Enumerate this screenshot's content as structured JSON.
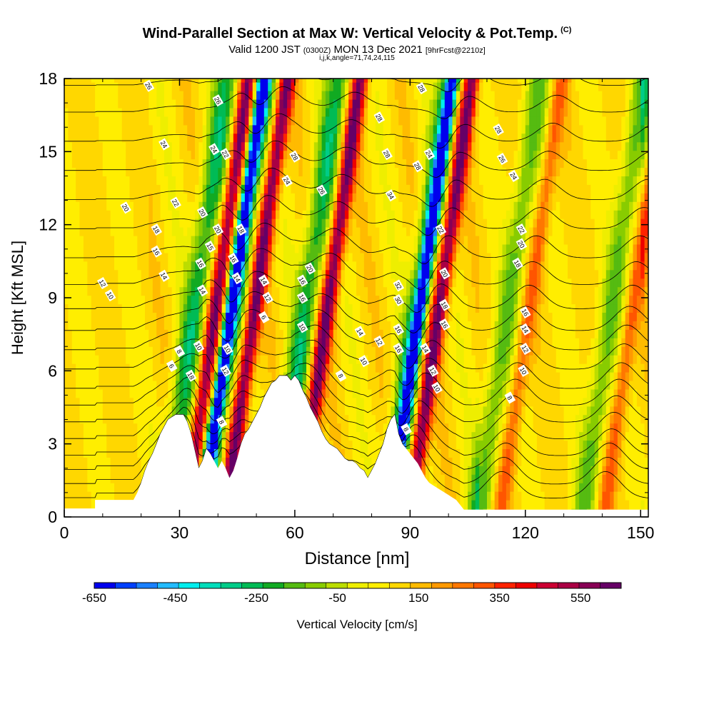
{
  "header": {
    "title": "Wind-Parallel Section at Max W: Vertical Velocity & Pot.Temp.",
    "copyright": "(C)",
    "valid_prefix": "Valid 1200 JST",
    "valid_zulu": "(0300Z)",
    "valid_date": "MON 13 Dec 2021",
    "forecast": "[9hrFcst@2210z]",
    "indices": "i,j,k,angle=71,74,24,115"
  },
  "chart_data": {
    "type": "heatmap",
    "xlabel": "Distance [nm]",
    "ylabel": "Height [Kft MSL]",
    "xlim": [
      0,
      152
    ],
    "ylim": [
      0,
      18
    ],
    "xticks": [
      0,
      30,
      60,
      90,
      120,
      150
    ],
    "xtick_labels": [
      "0",
      "30",
      "60",
      "90",
      "120",
      "150"
    ],
    "yticks": [
      0,
      3,
      6,
      9,
      12,
      15,
      18
    ],
    "ytick_labels": [
      "0",
      "3",
      "6",
      "9",
      "12",
      "15",
      "18"
    ],
    "grid": false,
    "colorbar": {
      "label": "Vertical Velocity [cm/s]",
      "placement": "bottom",
      "min": -650,
      "max": 650,
      "tick_values": [
        -650,
        -450,
        -250,
        -50,
        150,
        350,
        550
      ],
      "tick_labels": [
        "-650",
        "-450",
        "-250",
        "-50",
        "150",
        "350",
        "550"
      ],
      "colors": [
        "#0000ee",
        "#0040ff",
        "#1a80ff",
        "#22bbff",
        "#00eeee",
        "#00ddbb",
        "#00cc88",
        "#00bb55",
        "#11aa22",
        "#55bb11",
        "#88cc00",
        "#bbdd00",
        "#eeee00",
        "#ffee00",
        "#ffd700",
        "#ffbb00",
        "#ff9900",
        "#ff7700",
        "#ff5500",
        "#ff2200",
        "#ee0000",
        "#cc0033",
        "#aa0044",
        "#880055",
        "#660066"
      ]
    },
    "terrain": [
      [
        0,
        0.35
      ],
      [
        8,
        0.35
      ],
      [
        8,
        0.7
      ],
      [
        18,
        0.7
      ],
      [
        19,
        1.0
      ],
      [
        20,
        1.4
      ],
      [
        21,
        1.9
      ],
      [
        22,
        2.3
      ],
      [
        23,
        2.6
      ],
      [
        24,
        3.0
      ],
      [
        25,
        3.4
      ],
      [
        26,
        3.7
      ],
      [
        27,
        4.0
      ],
      [
        28,
        4.1
      ],
      [
        29,
        4.2
      ],
      [
        30,
        4.2
      ],
      [
        31,
        4.2
      ],
      [
        32,
        3.9
      ],
      [
        33,
        3.4
      ],
      [
        34,
        2.7
      ],
      [
        35,
        2.0
      ],
      [
        36,
        2.3
      ],
      [
        37,
        2.8
      ],
      [
        38,
        2.6
      ],
      [
        39,
        2.3
      ],
      [
        40,
        2.0
      ],
      [
        41,
        2.3
      ],
      [
        42,
        2.0
      ],
      [
        43,
        1.6
      ],
      [
        44,
        1.9
      ],
      [
        45,
        2.4
      ],
      [
        46,
        3.0
      ],
      [
        47,
        3.4
      ],
      [
        48,
        3.6
      ],
      [
        49,
        3.9
      ],
      [
        50,
        4.2
      ],
      [
        51,
        4.5
      ],
      [
        52,
        4.9
      ],
      [
        53,
        5.2
      ],
      [
        54,
        5.5
      ],
      [
        55,
        5.6
      ],
      [
        56,
        5.8
      ],
      [
        57,
        5.8
      ],
      [
        58,
        5.8
      ],
      [
        59,
        5.6
      ],
      [
        60,
        5.8
      ],
      [
        61,
        5.6
      ],
      [
        62,
        5.2
      ],
      [
        63,
        4.9
      ],
      [
        64,
        4.5
      ],
      [
        65,
        4.2
      ],
      [
        66,
        3.9
      ],
      [
        67,
        3.5
      ],
      [
        68,
        3.2
      ],
      [
        69,
        3.0
      ],
      [
        70,
        2.9
      ],
      [
        71,
        2.8
      ],
      [
        72,
        2.6
      ],
      [
        73,
        2.4
      ],
      [
        74,
        2.3
      ],
      [
        75,
        2.3
      ],
      [
        76,
        2.2
      ],
      [
        77,
        2.0
      ],
      [
        78,
        1.9
      ],
      [
        79,
        1.6
      ],
      [
        80,
        1.9
      ],
      [
        81,
        2.2
      ],
      [
        82,
        2.6
      ],
      [
        83,
        3.0
      ],
      [
        84,
        3.6
      ],
      [
        85,
        4.0
      ],
      [
        86,
        4.2
      ],
      [
        87,
        3.4
      ],
      [
        88,
        3.0
      ],
      [
        89,
        2.8
      ],
      [
        90,
        2.6
      ],
      [
        91,
        2.4
      ],
      [
        92,
        2.2
      ],
      [
        93,
        1.9
      ],
      [
        94,
        1.6
      ],
      [
        95,
        1.4
      ],
      [
        96,
        1.3
      ],
      [
        97,
        1.2
      ],
      [
        98,
        1.1
      ],
      [
        99,
        1.0
      ],
      [
        100,
        0.9
      ],
      [
        101,
        0.8
      ],
      [
        102,
        0.7
      ],
      [
        103,
        0.5
      ],
      [
        104,
        0.3
      ],
      [
        105,
        0.3
      ],
      [
        106,
        0.3
      ],
      [
        150,
        0.3
      ],
      [
        152,
        0.3
      ]
    ],
    "updraft_x_at_3kft": [
      34.5,
      44.5,
      63.5,
      92.5,
      116,
      143
    ],
    "downdraft_x_at_3kft": [
      38.5,
      87.5
    ],
    "band_tilt_nm_per_kft": 0.9,
    "updraft_peak_cm_s": 550,
    "downdraft_peak_cm_s": -600,
    "theta_levels": [
      {
        "base_kft": 0.6,
        "label": ""
      },
      {
        "base_kft": 1.2,
        "label": ""
      },
      {
        "base_kft": 1.8,
        "label": ""
      },
      {
        "base_kft": 2.4,
        "label": ""
      },
      {
        "base_kft": 3.1,
        "label": ""
      },
      {
        "base_kft": 3.8,
        "label": "8"
      },
      {
        "base_kft": 4.5,
        "label": "10"
      },
      {
        "base_kft": 5.2,
        "label": "12"
      },
      {
        "base_kft": 6.0,
        "label": "14"
      },
      {
        "base_kft": 6.8,
        "label": "16"
      },
      {
        "base_kft": 7.6,
        "label": "18"
      },
      {
        "base_kft": 8.5,
        "label": "20"
      },
      {
        "base_kft": 9.5,
        "label": "22"
      },
      {
        "base_kft": 10.6,
        "label": "24"
      },
      {
        "base_kft": 11.8,
        "label": "26"
      },
      {
        "base_kft": 13.0,
        "label": "28"
      },
      {
        "base_kft": 14.2,
        "label": ""
      },
      {
        "base_kft": 15.4,
        "label": ""
      },
      {
        "base_kft": 16.6,
        "label": ""
      },
      {
        "base_kft": 17.7,
        "label": ""
      }
    ],
    "contour_labels": [
      {
        "x": 10,
        "y": 9.6,
        "text": "12"
      },
      {
        "x": 12,
        "y": 9.1,
        "text": "10"
      },
      {
        "x": 16,
        "y": 12.7,
        "text": "20"
      },
      {
        "x": 22,
        "y": 17.7,
        "text": "26"
      },
      {
        "x": 24,
        "y": 10.9,
        "text": "16"
      },
      {
        "x": 26,
        "y": 9.9,
        "text": "14"
      },
      {
        "x": 24,
        "y": 11.8,
        "text": "18"
      },
      {
        "x": 26,
        "y": 15.3,
        "text": "24"
      },
      {
        "x": 29,
        "y": 12.9,
        "text": "22"
      },
      {
        "x": 28,
        "y": 6.2,
        "text": "6"
      },
      {
        "x": 30,
        "y": 6.8,
        "text": "8"
      },
      {
        "x": 33,
        "y": 5.8,
        "text": "18"
      },
      {
        "x": 35,
        "y": 7.0,
        "text": "10"
      },
      {
        "x": 36,
        "y": 9.3,
        "text": "14"
      },
      {
        "x": 35.5,
        "y": 10.4,
        "text": "16"
      },
      {
        "x": 38,
        "y": 11.1,
        "text": "15"
      },
      {
        "x": 36,
        "y": 12.5,
        "text": "20"
      },
      {
        "x": 40,
        "y": 11.8,
        "text": "20"
      },
      {
        "x": 39,
        "y": 15.1,
        "text": "24"
      },
      {
        "x": 40,
        "y": 17.1,
        "text": "26"
      },
      {
        "x": 42,
        "y": 14.9,
        "text": "22"
      },
      {
        "x": 42,
        "y": 6.0,
        "text": "12"
      },
      {
        "x": 42.5,
        "y": 6.9,
        "text": "10"
      },
      {
        "x": 41,
        "y": 3.9,
        "text": "8"
      },
      {
        "x": 44,
        "y": 10.6,
        "text": "16"
      },
      {
        "x": 45,
        "y": 9.8,
        "text": "14"
      },
      {
        "x": 46,
        "y": 11.8,
        "text": "18"
      },
      {
        "x": 52,
        "y": 9.7,
        "text": "14"
      },
      {
        "x": 53,
        "y": 9.0,
        "text": "12"
      },
      {
        "x": 52,
        "y": 8.2,
        "text": "6"
      },
      {
        "x": 58,
        "y": 13.8,
        "text": "24"
      },
      {
        "x": 60,
        "y": 14.8,
        "text": "28"
      },
      {
        "x": 62,
        "y": 9.7,
        "text": "16"
      },
      {
        "x": 62,
        "y": 9.0,
        "text": "16"
      },
      {
        "x": 62,
        "y": 7.8,
        "text": "10"
      },
      {
        "x": 64,
        "y": 10.2,
        "text": "20"
      },
      {
        "x": 67,
        "y": 13.4,
        "text": "26"
      },
      {
        "x": 72,
        "y": 5.8,
        "text": "8"
      },
      {
        "x": 77,
        "y": 7.6,
        "text": "14"
      },
      {
        "x": 78,
        "y": 6.4,
        "text": "10"
      },
      {
        "x": 82,
        "y": 7.2,
        "text": "12"
      },
      {
        "x": 82,
        "y": 16.4,
        "text": "28"
      },
      {
        "x": 84,
        "y": 14.9,
        "text": "28"
      },
      {
        "x": 85,
        "y": 13.2,
        "text": "34"
      },
      {
        "x": 87,
        "y": 9.5,
        "text": "32"
      },
      {
        "x": 87,
        "y": 8.9,
        "text": "30"
      },
      {
        "x": 87,
        "y": 7.7,
        "text": "16"
      },
      {
        "x": 87,
        "y": 6.9,
        "text": "16"
      },
      {
        "x": 89,
        "y": 3.6,
        "text": "8"
      },
      {
        "x": 92,
        "y": 14.4,
        "text": "28"
      },
      {
        "x": 93,
        "y": 17.6,
        "text": "28"
      },
      {
        "x": 95,
        "y": 14.9,
        "text": "24"
      },
      {
        "x": 94,
        "y": 6.9,
        "text": "14"
      },
      {
        "x": 96,
        "y": 6.0,
        "text": "12"
      },
      {
        "x": 97,
        "y": 5.3,
        "text": "10"
      },
      {
        "x": 98,
        "y": 11.8,
        "text": "22"
      },
      {
        "x": 99,
        "y": 10.0,
        "text": "20"
      },
      {
        "x": 99,
        "y": 8.7,
        "text": "18"
      },
      {
        "x": 99,
        "y": 7.9,
        "text": "16"
      },
      {
        "x": 113,
        "y": 15.9,
        "text": "28"
      },
      {
        "x": 114,
        "y": 14.7,
        "text": "26"
      },
      {
        "x": 117,
        "y": 14.0,
        "text": "24"
      },
      {
        "x": 118,
        "y": 10.4,
        "text": "18"
      },
      {
        "x": 119,
        "y": 11.2,
        "text": "20"
      },
      {
        "x": 119,
        "y": 11.8,
        "text": "22"
      },
      {
        "x": 120,
        "y": 8.4,
        "text": "16"
      },
      {
        "x": 120,
        "y": 7.7,
        "text": "14"
      },
      {
        "x": 120,
        "y": 6.9,
        "text": "12"
      },
      {
        "x": 119.5,
        "y": 6.0,
        "text": "10"
      },
      {
        "x": 116,
        "y": 4.9,
        "text": "8"
      }
    ]
  }
}
